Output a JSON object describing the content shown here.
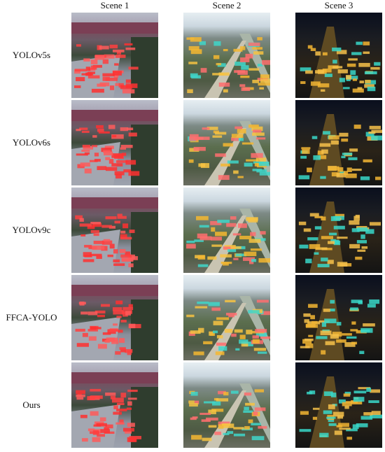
{
  "figure": {
    "columns": [
      "Scene 1",
      "Scene 2",
      "Scene 3"
    ],
    "rows": [
      "YOLOv5s",
      "YOLOv6s",
      "YOLOv9c",
      "FFCA-YOLO",
      "Ours"
    ]
  }
}
